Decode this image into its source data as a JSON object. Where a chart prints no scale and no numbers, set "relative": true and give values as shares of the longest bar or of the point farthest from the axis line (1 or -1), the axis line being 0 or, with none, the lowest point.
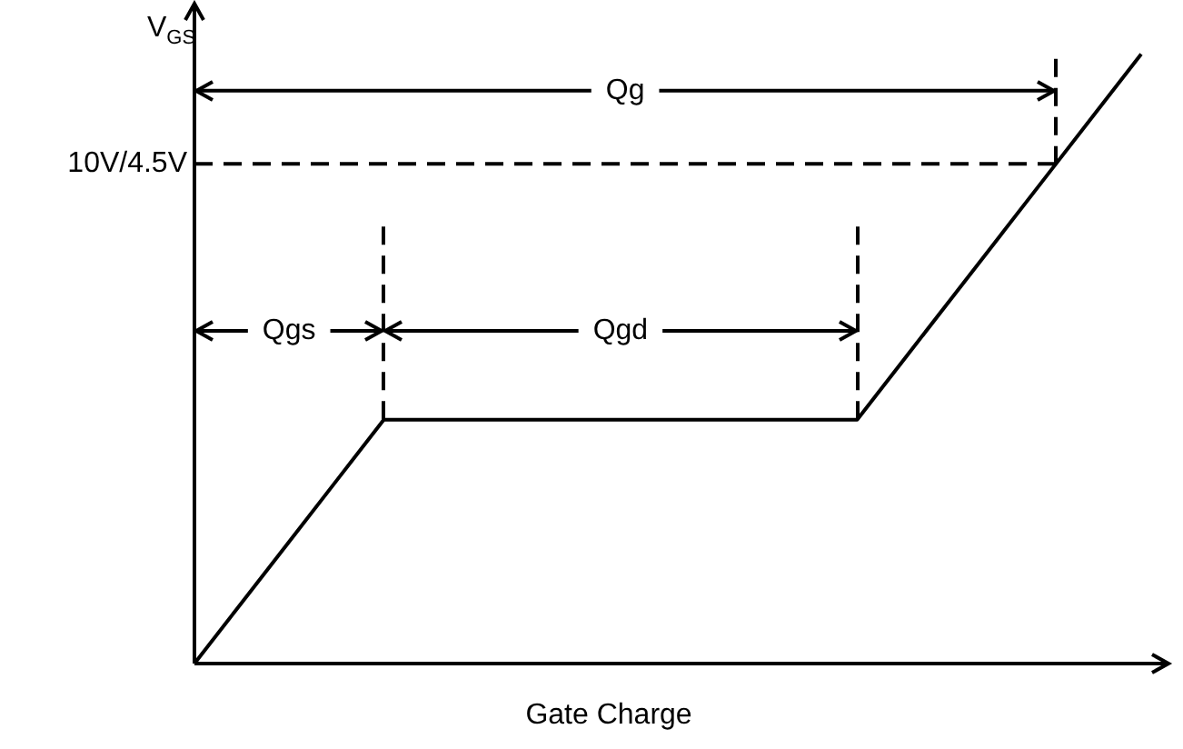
{
  "chart_data": {
    "type": "line",
    "relative": true,
    "categories": [
      null,
      null,
      null,
      null,
      null,
      null,
      null,
      null,
      null,
      null,
      null,
      null,
      null,
      null,
      null,
      null,
      null,
      null,
      null,
      null,
      null
    ],
    "values": [
      0,
      0.1,
      0.2,
      0.3,
      0.4,
      0.4,
      0.4,
      0.4,
      0.4,
      0.4,
      0.4,
      0.4,
      0.4,
      0.4,
      0.4,
      0.5,
      0.6,
      0.7,
      0.8,
      0.9,
      1
    ],
    "color": "#000000",
    "xlabel": "Gate Charge",
    "ylabel": "V$_{GS}$",
    "marker": "none",
    "line_style": "solid",
    "ref_lines": [
      {
        "axis": "y",
        "value": 0.82,
        "label": "10V/4.5V",
        "line_style": "dashed"
      }
    ],
    "annotations": [
      "Qg",
      "Qgs",
      "Qgd"
    ]
  }
}
